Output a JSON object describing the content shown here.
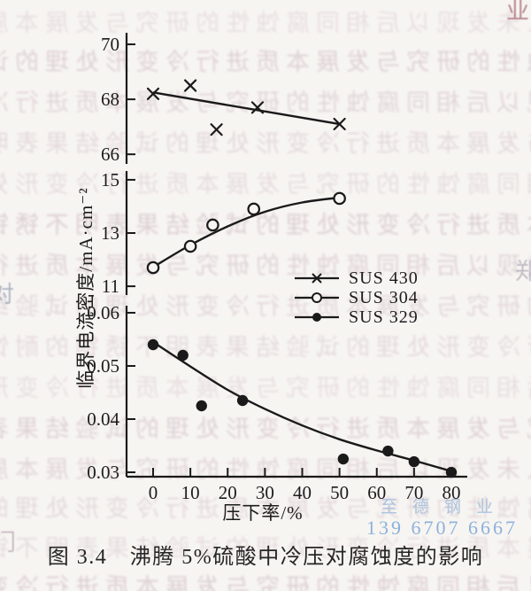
{
  "page": {
    "caption": "图 3.4　沸腾 5%硫酸中冷压对腐蚀度的影响"
  },
  "watermark": {
    "name": "至德钢业",
    "phone": "139 6707 6667"
  },
  "chart_data": {
    "type": "scatter",
    "title": "图3.4 沸腾5%硫酸中冷压对腐蚀度的影响",
    "xlabel": "压下率/%",
    "ylabel": "临界电流密度/mA·cm⁻²",
    "xlim": [
      0,
      80
    ],
    "x_ticks": [
      0,
      10,
      20,
      30,
      40,
      50,
      60,
      70,
      80
    ],
    "grid": false,
    "legend_position": "middle-right",
    "panels": [
      {
        "id": "top",
        "ylim": [
          65.65,
          70.42
        ],
        "ticks": [
          {
            "v": 70,
            "label": "70"
          },
          {
            "v": 68,
            "label": "68"
          },
          {
            "v": 66,
            "label": "66"
          }
        ]
      },
      {
        "id": "middle",
        "ylim": [
          10.67,
          15.33
        ],
        "ticks": [
          {
            "v": 15,
            "label": "15"
          },
          {
            "v": 13,
            "label": "13"
          },
          {
            "v": 11,
            "label": "11"
          }
        ]
      },
      {
        "id": "bottom",
        "ylim": [
          0.02917,
          0.06133
        ],
        "ticks": [
          {
            "v": 0.06,
            "label": "0.06"
          },
          {
            "v": 0.05,
            "label": "0.05"
          },
          {
            "v": 0.04,
            "label": "0.04"
          },
          {
            "v": 0.03,
            "label": "0.03"
          }
        ]
      }
    ],
    "series": [
      {
        "name": "SUS 430",
        "panel": "top",
        "marker": "x",
        "points": [
          [
            0,
            68.2
          ],
          [
            10,
            68.5
          ],
          [
            17,
            66.9
          ],
          [
            28,
            67.7
          ],
          [
            50,
            67.1
          ]
        ],
        "fit_line": [
          [
            0,
            68.25
          ],
          [
            50,
            67.1
          ]
        ]
      },
      {
        "name": "SUS 304",
        "panel": "middle",
        "marker": "o",
        "points": [
          [
            0,
            11.7
          ],
          [
            10,
            12.5
          ],
          [
            16,
            13.3
          ],
          [
            27,
            13.9
          ],
          [
            50,
            14.3
          ]
        ],
        "fit_line": [
          [
            0,
            11.72
          ],
          [
            10,
            12.55
          ],
          [
            20,
            13.25
          ],
          [
            30,
            13.8
          ],
          [
            40,
            14.15
          ],
          [
            50,
            14.33
          ]
        ]
      },
      {
        "name": "SUS 329",
        "panel": "bottom",
        "marker": "dot",
        "points": [
          [
            0,
            0.054
          ],
          [
            8,
            0.052
          ],
          [
            13,
            0.0425
          ],
          [
            24,
            0.0435
          ],
          [
            51,
            0.0325
          ],
          [
            63,
            0.034
          ],
          [
            70,
            0.032
          ],
          [
            80,
            0.03
          ]
        ],
        "fit_line": [
          [
            0,
            0.0545
          ],
          [
            10,
            0.0499
          ],
          [
            20,
            0.0455
          ],
          [
            30,
            0.0419
          ],
          [
            40,
            0.0388
          ],
          [
            50,
            0.0362
          ],
          [
            60,
            0.0341
          ],
          [
            70,
            0.0322
          ],
          [
            80,
            0.0302
          ]
        ]
      }
    ]
  },
  "background_noise": {
    "chars": "引人未发现以后相同腐蚀性的研究与发展本质进行冷变形处理的试验结果表明不锈钢的耐蚀性能随压下率的增加而变化其临界电流密度值在硫酸溶液中测得孔蚀电位和钝化膜稳定性等指标均有影响冷加工对奥氏体组织转变",
    "edge_chars": "业对郑门"
  }
}
